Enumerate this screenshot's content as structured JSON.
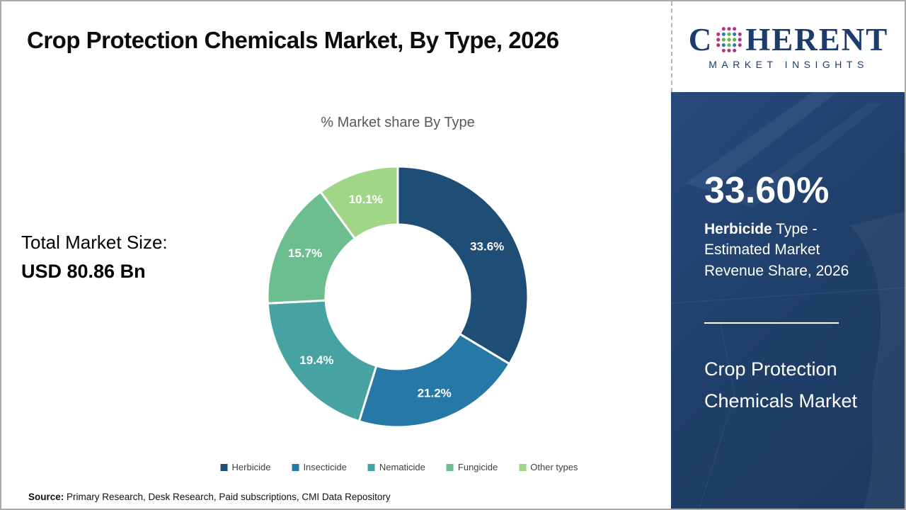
{
  "header": {
    "title": "Crop Protection Chemicals Market, By Type, 2026"
  },
  "logo": {
    "brand_left": "C",
    "brand_right": "HERENT",
    "brand_sub": "MARKET INSIGHTS",
    "globe_icon": "dotted-globe-icon",
    "text_color": "#1d3c6e",
    "globe_dot_colors": {
      "outer": "#b5338a",
      "mid": "#2e7ea8",
      "inner": "#69b345"
    }
  },
  "left_panel": {
    "label": "Total Market Size:",
    "value": "USD 80.86 Bn"
  },
  "chart_data": {
    "type": "pie",
    "donut": true,
    "title": "% Market share By Type",
    "categories": [
      "Herbicide",
      "Insecticide",
      "Nematicide",
      "Fungicide",
      "Other types"
    ],
    "values": [
      33.6,
      21.2,
      19.4,
      15.7,
      10.1
    ],
    "labels": [
      "33.6%",
      "21.2%",
      "19.4%",
      "15.7%",
      "10.1%"
    ],
    "colors": [
      "#1e4e76",
      "#2678a6",
      "#47a2a2",
      "#6cbe8e",
      "#a1d687"
    ],
    "start_angle_deg": 0,
    "direction": "clockwise",
    "legend_position": "bottom",
    "slice_border_color": "#ffffff"
  },
  "sidebar": {
    "background": "#1f3e68",
    "stat_value": "33.60%",
    "stat_label_bold": "Herbicide",
    "stat_label_rest": " Type -",
    "stat_line2": "Estimated Market",
    "stat_line3": "Revenue Share, 2026",
    "market_line1": "Crop Protection",
    "market_line2": "Chemicals Market"
  },
  "footer": {
    "source_label": "Source:",
    "source_text": " Primary Research, Desk Research, Paid subscriptions, CMI Data Repository"
  }
}
